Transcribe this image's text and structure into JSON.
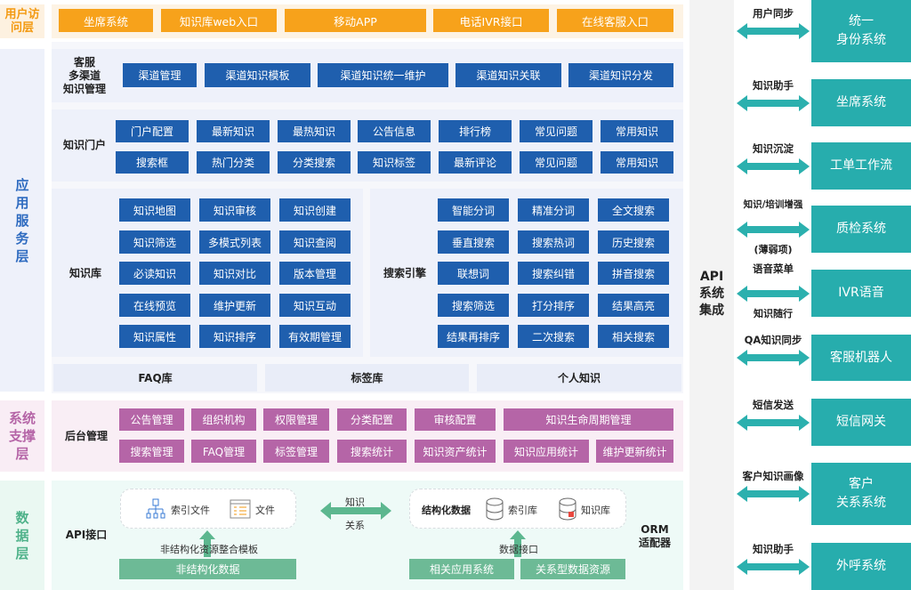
{
  "layers": {
    "user": "用户访问层",
    "app": "应用服务层",
    "support": "系统支撑层",
    "data": "数据层"
  },
  "colors": {
    "orange": "#f7a21b",
    "blue": "#1f5fae",
    "purple": "#b565a7",
    "green": "#6dba96",
    "teal": "#27adad"
  },
  "user_access": [
    "坐席系统",
    "知识库web入口",
    "移动APP",
    "电话IVR接口",
    "在线客服入口"
  ],
  "channel": {
    "label": "客服\n多渠道\n知识管理",
    "items": [
      "渠道管理",
      "渠道知识模板",
      "渠道知识统一维护",
      "渠道知识关联",
      "渠道知识分发"
    ]
  },
  "portal": {
    "label": "知识门户",
    "row1": [
      "门户配置",
      "最新知识",
      "最热知识",
      "公告信息",
      "排行榜",
      "常见问题",
      "常用知识"
    ],
    "row2": [
      "搜索框",
      "热门分类",
      "分类搜索",
      "知识标签",
      "最新评论",
      "常见问题",
      "常用知识"
    ]
  },
  "kb": {
    "label": "知识库",
    "items": [
      [
        "知识地图",
        "知识审核",
        "知识创建"
      ],
      [
        "知识筛选",
        "多模式列表",
        "知识查阅"
      ],
      [
        "必读知识",
        "知识对比",
        "版本管理"
      ],
      [
        "在线预览",
        "维护更新",
        "知识互动"
      ],
      [
        "知识属性",
        "知识排序",
        "有效期管理"
      ]
    ]
  },
  "search": {
    "label": "搜索引擎",
    "items": [
      [
        "智能分词",
        "精准分词",
        "全文搜索"
      ],
      [
        "垂直搜索",
        "搜索热词",
        "历史搜索"
      ],
      [
        "联想词",
        "搜索纠错",
        "拼音搜索"
      ],
      [
        "搜索筛选",
        "打分排序",
        "结果高亮"
      ],
      [
        "结果再排序",
        "二次搜索",
        "相关搜索"
      ]
    ]
  },
  "tabs": [
    "FAQ库",
    "标签库",
    "个人知识"
  ],
  "backend": {
    "label": "后台管理",
    "row1": [
      "公告管理",
      "组织机构",
      "权限管理",
      "分类配置",
      "审核配置",
      "知识生命周期管理"
    ],
    "row2": [
      "搜索管理",
      "FAQ管理",
      "标签管理",
      "搜索统计",
      "知识资产统计",
      "知识应用统计",
      "维护更新统计"
    ]
  },
  "datalayer": {
    "api": "API接口",
    "orm": "ORM\n适配器",
    "index_file": "索引文件",
    "file": "文件",
    "arrow_top": "知识",
    "arrow_bottom": "关系",
    "structured": "结构化数据",
    "index_db": "索引库",
    "kdb": "知识库",
    "template": "非结构化资源整合模板",
    "unstructured": "非结构化数据",
    "data_iface": "数据接口",
    "related": "相关应用系统",
    "relational": "关系型数据资源"
  },
  "api_label": "API\n系统\n集成",
  "integrations": [
    {
      "link": "用户同步",
      "system": "统一\n身份系统"
    },
    {
      "link": "知识助手",
      "system": "坐席系统"
    },
    {
      "link": "知识沉淀",
      "system": "工单工作流"
    },
    {
      "link": "知识/培训增强",
      "link2": "(薄弱项)",
      "system": "质检系统"
    },
    {
      "link": "语音菜单",
      "link2": "知识随行",
      "system": "IVR语音"
    },
    {
      "link": "QA知识同步",
      "system": "客服机器人"
    },
    {
      "link": "短信发送",
      "system": "短信网关"
    },
    {
      "link": "客户知识画像",
      "system": "客户\n关系系统"
    },
    {
      "link": "知识助手",
      "system": "外呼系统"
    }
  ]
}
